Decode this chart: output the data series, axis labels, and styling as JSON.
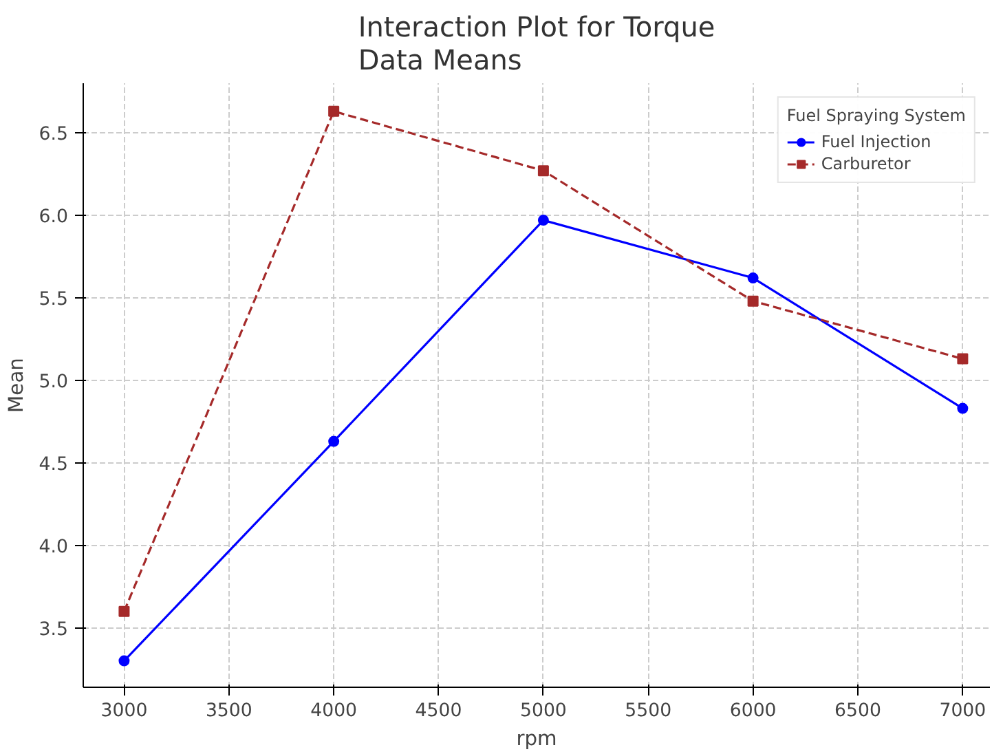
{
  "chart_data": {
    "type": "line",
    "title": "Interaction Plot for Torque\nData Means",
    "xlabel": "rpm",
    "ylabel": "Mean",
    "legend_title": "Fuel Spraying System",
    "x": [
      3000,
      4000,
      5000,
      6000,
      7000
    ],
    "series": [
      {
        "name": "Fuel Injection",
        "color": "#0000ff",
        "values": [
          3.3,
          4.63,
          5.97,
          5.62,
          4.83
        ],
        "marker": "circle",
        "line_style": "solid"
      },
      {
        "name": "Carburetor",
        "color": "#a52a2a",
        "values": [
          3.6,
          6.63,
          6.27,
          5.48,
          5.13
        ],
        "marker": "square",
        "line_style": "dashed"
      }
    ],
    "xlim": [
      2805,
      7130
    ],
    "ylim": [
      3.14,
      6.8
    ],
    "xticks": [
      3000,
      3500,
      4000,
      4500,
      5000,
      5500,
      6000,
      6500,
      7000
    ],
    "yticks": [
      3.5,
      {
        "value": 4,
        "label": "4.0"
      },
      4.5,
      {
        "value": 5,
        "label": "5.0"
      },
      5.5,
      {
        "value": 6,
        "label": "6.0"
      },
      6.5
    ],
    "grid": true,
    "legend": "top right"
  }
}
